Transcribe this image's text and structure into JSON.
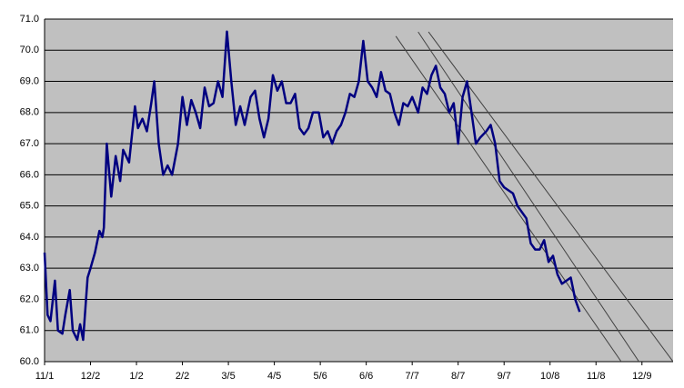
{
  "chart_data": {
    "type": "line",
    "x": [
      0,
      2,
      4,
      7,
      9,
      12,
      14,
      17,
      19,
      22,
      24,
      26,
      29,
      31,
      34,
      37,
      39,
      40,
      42,
      45,
      48,
      51,
      53,
      57,
      61,
      63,
      66,
      69,
      72,
      74,
      77,
      80,
      83,
      86,
      90,
      93,
      96,
      99,
      102,
      105,
      108,
      111,
      114,
      117,
      120,
      123,
      126,
      129,
      132,
      135,
      139,
      142,
      145,
      148,
      151,
      154,
      157,
      160,
      163,
      166,
      169,
      172,
      175,
      178,
      181,
      185,
      188,
      191,
      194,
      197,
      200,
      203,
      206,
      209,
      212,
      215,
      218,
      221,
      224,
      227,
      230,
      233,
      236,
      239,
      242,
      245,
      248,
      252,
      255,
      258,
      261,
      264,
      267,
      270,
      273,
      276,
      279,
      282,
      285,
      288,
      291,
      294,
      298,
      301,
      304,
      307,
      310,
      313,
      316,
      319,
      322,
      325,
      328,
      331,
      334,
      337,
      340,
      343,
      346,
      349,
      352,
      355,
      358,
      361
    ],
    "series": [
      {
        "color": "#000080",
        "values": [
          63.5,
          61.5,
          61.3,
          62.6,
          61.0,
          60.9,
          61.5,
          62.3,
          61.0,
          60.7,
          61.2,
          60.7,
          62.7,
          63.0,
          63.5,
          64.2,
          64.0,
          64.3,
          67.0,
          65.3,
          66.6,
          65.8,
          66.8,
          66.4,
          68.2,
          67.5,
          67.8,
          67.4,
          68.3,
          69.0,
          67.0,
          66.0,
          66.3,
          66.0,
          67.0,
          68.5,
          67.6,
          68.4,
          68.0,
          67.5,
          68.8,
          68.2,
          68.3,
          69.0,
          68.5,
          70.6,
          69.0,
          67.6,
          68.2,
          67.6,
          68.5,
          68.7,
          67.8,
          67.2,
          67.8,
          69.2,
          68.7,
          69.0,
          68.3,
          68.3,
          68.6,
          67.5,
          67.3,
          67.5,
          68.0,
          68.0,
          67.2,
          67.4,
          67.0,
          67.4,
          67.6,
          68.0,
          68.6,
          68.5,
          69.0,
          70.3,
          69.0,
          68.8,
          68.5,
          69.3,
          68.7,
          68.6,
          68.0,
          67.6,
          68.3,
          68.2,
          68.5,
          68.0,
          68.8,
          68.6,
          69.2,
          69.5,
          68.8,
          68.6,
          68.0,
          68.3,
          67.0,
          68.5,
          69.0,
          68.0,
          67.0,
          67.2,
          67.4,
          67.6,
          67.0,
          65.8,
          65.6,
          65.5,
          65.4,
          65.0,
          64.8,
          64.6,
          63.8,
          63.6,
          63.6,
          63.9,
          63.2,
          63.4,
          62.8,
          62.5,
          62.6,
          62.7,
          62.0,
          61.6
        ]
      }
    ],
    "trend_lines": [
      {
        "color": "#404040",
        "x": [
          237,
          389
        ],
        "values": [
          70.45,
          60
        ]
      },
      {
        "color": "#404040",
        "x": [
          252,
          401
        ],
        "values": [
          70.59,
          60
        ]
      },
      {
        "color": "#404040",
        "x": [
          259,
          424
        ],
        "values": [
          70.59,
          60
        ]
      }
    ],
    "xlim": [
      0,
      424
    ],
    "ylim": [
      60,
      71
    ],
    "xticks": [
      {
        "value": 0,
        "label": "11/1"
      },
      {
        "value": 31,
        "label": "12/2"
      },
      {
        "value": 62,
        "label": "1/2"
      },
      {
        "value": 93,
        "label": "2/2"
      },
      {
        "value": 124,
        "label": "3/5"
      },
      {
        "value": 155,
        "label": "4/5"
      },
      {
        "value": 186,
        "label": "5/6"
      },
      {
        "value": 217,
        "label": "6/6"
      },
      {
        "value": 248,
        "label": "7/7"
      },
      {
        "value": 279,
        "label": "8/7"
      },
      {
        "value": 310,
        "label": "9/7"
      },
      {
        "value": 341,
        "label": "10/8"
      },
      {
        "value": 372,
        "label": "11/8"
      },
      {
        "value": 403,
        "label": "12/9"
      }
    ],
    "yticks": [
      {
        "value": 60,
        "label": "60.0"
      },
      {
        "value": 61,
        "label": "61.0"
      },
      {
        "value": 62,
        "label": "62.0"
      },
      {
        "value": 63,
        "label": "63.0"
      },
      {
        "value": 64,
        "label": "64.0"
      },
      {
        "value": 65,
        "label": "65.0"
      },
      {
        "value": 66,
        "label": "66.0"
      },
      {
        "value": 67,
        "label": "67.0"
      },
      {
        "value": 68,
        "label": "68.0"
      },
      {
        "value": 69,
        "label": "69.0"
      },
      {
        "value": 70,
        "label": "70.0"
      },
      {
        "value": 71,
        "label": "71.0"
      }
    ],
    "grid": true,
    "background": "#c0c0c0"
  }
}
